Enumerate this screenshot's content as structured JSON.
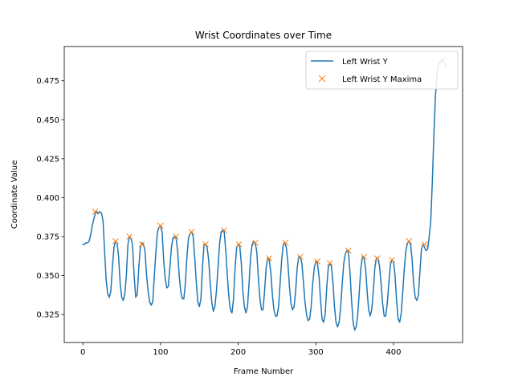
{
  "chart_data": {
    "type": "line",
    "title": "Wrist Coordinates over Time",
    "xlabel": "Frame Number",
    "ylabel": "Coordinate Value",
    "xlim": [
      -24,
      489
    ],
    "ylim": [
      0.307,
      0.497
    ],
    "xticks": [
      0,
      100,
      200,
      300,
      400
    ],
    "xtick_labels": [
      "0",
      "100",
      "200",
      "300",
      "400"
    ],
    "yticks": [
      0.325,
      0.35,
      0.375,
      0.4,
      0.425,
      0.45,
      0.475
    ],
    "ytick_labels": [
      "0.325",
      "0.350",
      "0.375",
      "0.400",
      "0.425",
      "0.450",
      "0.475"
    ],
    "grid": false,
    "legend_position": "top-right",
    "colors": {
      "series": "#1f77b4",
      "maxima": "#ff7f0e"
    },
    "series": [
      {
        "name": "Left Wrist Y",
        "style": "line",
        "points": [
          [
            0,
            0.37
          ],
          [
            2,
            0.37
          ],
          [
            4,
            0.371
          ],
          [
            6,
            0.371
          ],
          [
            8,
            0.372
          ],
          [
            10,
            0.376
          ],
          [
            12,
            0.382
          ],
          [
            14,
            0.386
          ],
          [
            16,
            0.39
          ],
          [
            18,
            0.391
          ],
          [
            20,
            0.39
          ],
          [
            22,
            0.391
          ],
          [
            24,
            0.39
          ],
          [
            26,
            0.385
          ],
          [
            28,
            0.365
          ],
          [
            30,
            0.347
          ],
          [
            32,
            0.338
          ],
          [
            34,
            0.336
          ],
          [
            36,
            0.34
          ],
          [
            38,
            0.355
          ],
          [
            40,
            0.368
          ],
          [
            42,
            0.372
          ],
          [
            44,
            0.371
          ],
          [
            46,
            0.362
          ],
          [
            48,
            0.345
          ],
          [
            50,
            0.336
          ],
          [
            52,
            0.334
          ],
          [
            54,
            0.338
          ],
          [
            56,
            0.35
          ],
          [
            58,
            0.37
          ],
          [
            60,
            0.375
          ],
          [
            62,
            0.374
          ],
          [
            64,
            0.369
          ],
          [
            66,
            0.35
          ],
          [
            68,
            0.336
          ],
          [
            70,
            0.338
          ],
          [
            72,
            0.355
          ],
          [
            74,
            0.368
          ],
          [
            76,
            0.371
          ],
          [
            78,
            0.37
          ],
          [
            80,
            0.366
          ],
          [
            82,
            0.35
          ],
          [
            84,
            0.34
          ],
          [
            86,
            0.333
          ],
          [
            88,
            0.331
          ],
          [
            90,
            0.333
          ],
          [
            92,
            0.35
          ],
          [
            94,
            0.365
          ],
          [
            96,
            0.378
          ],
          [
            98,
            0.381
          ],
          [
            100,
            0.382
          ],
          [
            102,
            0.378
          ],
          [
            104,
            0.36
          ],
          [
            106,
            0.348
          ],
          [
            108,
            0.342
          ],
          [
            110,
            0.343
          ],
          [
            112,
            0.355
          ],
          [
            114,
            0.368
          ],
          [
            116,
            0.374
          ],
          [
            118,
            0.375
          ],
          [
            120,
            0.374
          ],
          [
            122,
            0.366
          ],
          [
            124,
            0.35
          ],
          [
            126,
            0.34
          ],
          [
            128,
            0.335
          ],
          [
            130,
            0.335
          ],
          [
            132,
            0.345
          ],
          [
            134,
            0.362
          ],
          [
            136,
            0.374
          ],
          [
            138,
            0.377
          ],
          [
            140,
            0.378
          ],
          [
            142,
            0.375
          ],
          [
            144,
            0.362
          ],
          [
            146,
            0.346
          ],
          [
            148,
            0.333
          ],
          [
            150,
            0.33
          ],
          [
            152,
            0.335
          ],
          [
            154,
            0.355
          ],
          [
            156,
            0.37
          ],
          [
            158,
            0.37
          ],
          [
            160,
            0.368
          ],
          [
            162,
            0.36
          ],
          [
            164,
            0.345
          ],
          [
            166,
            0.333
          ],
          [
            168,
            0.327
          ],
          [
            170,
            0.33
          ],
          [
            172,
            0.34
          ],
          [
            174,
            0.355
          ],
          [
            176,
            0.37
          ],
          [
            178,
            0.378
          ],
          [
            180,
            0.379
          ],
          [
            182,
            0.378
          ],
          [
            184,
            0.366
          ],
          [
            186,
            0.35
          ],
          [
            188,
            0.336
          ],
          [
            190,
            0.328
          ],
          [
            192,
            0.326
          ],
          [
            194,
            0.335
          ],
          [
            196,
            0.355
          ],
          [
            198,
            0.368
          ],
          [
            200,
            0.37
          ],
          [
            202,
            0.369
          ],
          [
            204,
            0.358
          ],
          [
            206,
            0.34
          ],
          [
            208,
            0.33
          ],
          [
            210,
            0.326
          ],
          [
            212,
            0.33
          ],
          [
            214,
            0.345
          ],
          [
            216,
            0.362
          ],
          [
            218,
            0.37
          ],
          [
            220,
            0.372
          ],
          [
            222,
            0.371
          ],
          [
            224,
            0.365
          ],
          [
            226,
            0.348
          ],
          [
            228,
            0.335
          ],
          [
            230,
            0.328
          ],
          [
            232,
            0.328
          ],
          [
            234,
            0.34
          ],
          [
            236,
            0.355
          ],
          [
            238,
            0.361
          ],
          [
            240,
            0.36
          ],
          [
            242,
            0.352
          ],
          [
            244,
            0.338
          ],
          [
            246,
            0.328
          ],
          [
            248,
            0.324
          ],
          [
            250,
            0.324
          ],
          [
            252,
            0.33
          ],
          [
            254,
            0.345
          ],
          [
            256,
            0.36
          ],
          [
            258,
            0.37
          ],
          [
            260,
            0.371
          ],
          [
            262,
            0.368
          ],
          [
            264,
            0.358
          ],
          [
            266,
            0.343
          ],
          [
            268,
            0.332
          ],
          [
            270,
            0.328
          ],
          [
            272,
            0.33
          ],
          [
            274,
            0.34
          ],
          [
            276,
            0.355
          ],
          [
            278,
            0.362
          ],
          [
            280,
            0.362
          ],
          [
            282,
            0.358
          ],
          [
            284,
            0.346
          ],
          [
            286,
            0.333
          ],
          [
            288,
            0.325
          ],
          [
            290,
            0.321
          ],
          [
            292,
            0.322
          ],
          [
            294,
            0.33
          ],
          [
            296,
            0.345
          ],
          [
            298,
            0.355
          ],
          [
            300,
            0.359
          ],
          [
            302,
            0.358
          ],
          [
            304,
            0.35
          ],
          [
            306,
            0.335
          ],
          [
            308,
            0.322
          ],
          [
            310,
            0.32
          ],
          [
            312,
            0.325
          ],
          [
            314,
            0.342
          ],
          [
            316,
            0.355
          ],
          [
            318,
            0.358
          ],
          [
            320,
            0.356
          ],
          [
            322,
            0.346
          ],
          [
            324,
            0.33
          ],
          [
            326,
            0.32
          ],
          [
            328,
            0.317
          ],
          [
            330,
            0.32
          ],
          [
            332,
            0.33
          ],
          [
            334,
            0.345
          ],
          [
            336,
            0.358
          ],
          [
            338,
            0.364
          ],
          [
            340,
            0.366
          ],
          [
            342,
            0.365
          ],
          [
            344,
            0.352
          ],
          [
            346,
            0.334
          ],
          [
            348,
            0.32
          ],
          [
            350,
            0.315
          ],
          [
            352,
            0.317
          ],
          [
            354,
            0.325
          ],
          [
            356,
            0.34
          ],
          [
            358,
            0.355
          ],
          [
            360,
            0.362
          ],
          [
            362,
            0.361
          ],
          [
            364,
            0.355
          ],
          [
            366,
            0.34
          ],
          [
            368,
            0.328
          ],
          [
            370,
            0.324
          ],
          [
            372,
            0.328
          ],
          [
            374,
            0.34
          ],
          [
            376,
            0.355
          ],
          [
            378,
            0.361
          ],
          [
            380,
            0.361
          ],
          [
            382,
            0.356
          ],
          [
            384,
            0.345
          ],
          [
            386,
            0.332
          ],
          [
            388,
            0.324
          ],
          [
            390,
            0.324
          ],
          [
            392,
            0.332
          ],
          [
            394,
            0.345
          ],
          [
            396,
            0.357
          ],
          [
            398,
            0.36
          ],
          [
            400,
            0.359
          ],
          [
            402,
            0.35
          ],
          [
            404,
            0.334
          ],
          [
            406,
            0.322
          ],
          [
            408,
            0.32
          ],
          [
            410,
            0.326
          ],
          [
            412,
            0.34
          ],
          [
            414,
            0.355
          ],
          [
            416,
            0.366
          ],
          [
            418,
            0.371
          ],
          [
            420,
            0.372
          ],
          [
            422,
            0.37
          ],
          [
            424,
            0.36
          ],
          [
            426,
            0.344
          ],
          [
            428,
            0.336
          ],
          [
            430,
            0.334
          ],
          [
            432,
            0.337
          ],
          [
            434,
            0.352
          ],
          [
            436,
            0.367
          ],
          [
            438,
            0.37
          ],
          [
            440,
            0.368
          ],
          [
            442,
            0.366
          ],
          [
            444,
            0.367
          ],
          [
            446,
            0.375
          ],
          [
            448,
            0.385
          ],
          [
            450,
            0.41
          ],
          [
            452,
            0.44
          ],
          [
            454,
            0.465
          ],
          [
            456,
            0.48
          ],
          [
            458,
            0.486
          ],
          [
            460,
            0.487
          ],
          [
            462,
            0.488
          ],
          [
            464,
            0.488
          ],
          [
            466,
            0.486
          ],
          [
            468,
            0.484
          ]
        ]
      },
      {
        "name": "Left Wrist Y Maxima",
        "style": "x-markers",
        "points": [
          [
            16,
            0.391
          ],
          [
            42,
            0.372
          ],
          [
            60,
            0.375
          ],
          [
            76,
            0.37
          ],
          [
            100,
            0.382
          ],
          [
            120,
            0.375
          ],
          [
            140,
            0.378
          ],
          [
            158,
            0.37
          ],
          [
            182,
            0.379
          ],
          [
            201,
            0.37
          ],
          [
            222,
            0.371
          ],
          [
            240,
            0.361
          ],
          [
            261,
            0.371
          ],
          [
            280,
            0.362
          ],
          [
            302,
            0.359
          ],
          [
            318,
            0.358
          ],
          [
            342,
            0.366
          ],
          [
            362,
            0.362
          ],
          [
            379,
            0.361
          ],
          [
            398,
            0.36
          ],
          [
            420,
            0.372
          ],
          [
            440,
            0.37
          ],
          [
            463,
            0.488
          ]
        ]
      }
    ]
  }
}
